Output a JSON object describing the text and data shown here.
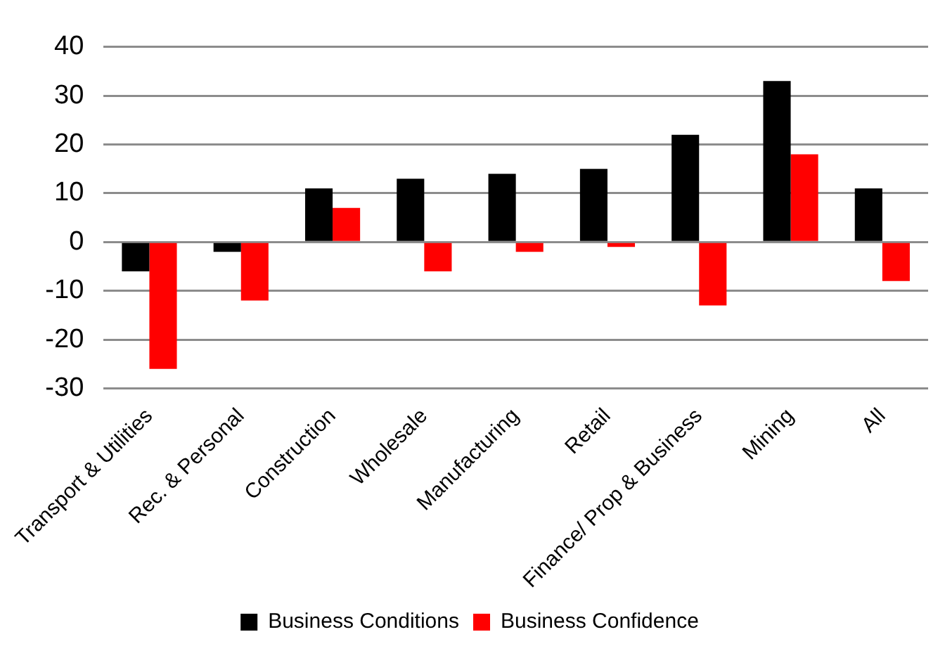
{
  "chart_data": {
    "type": "bar",
    "categories": [
      "Transport & Utilities",
      "Rec. & Personal",
      "Construction",
      "Wholesale",
      "Manufacturing",
      "Retail",
      "Finance/ Prop & Business",
      "Mining",
      "All"
    ],
    "series": [
      {
        "name": "Business Conditions",
        "color": "#000000",
        "values": [
          -6,
          -2,
          11,
          13,
          14,
          15,
          22,
          33,
          11
        ]
      },
      {
        "name": "Business Confidence",
        "color": "#ff0000",
        "values": [
          -26,
          -12,
          7,
          -6,
          -2,
          -1,
          -13,
          18,
          -8
        ]
      }
    ],
    "ylim": [
      -30,
      40
    ],
    "yticks": [
      -30,
      -20,
      -10,
      0,
      10,
      20,
      30,
      40
    ],
    "grid": "y",
    "legend": "bottom"
  }
}
